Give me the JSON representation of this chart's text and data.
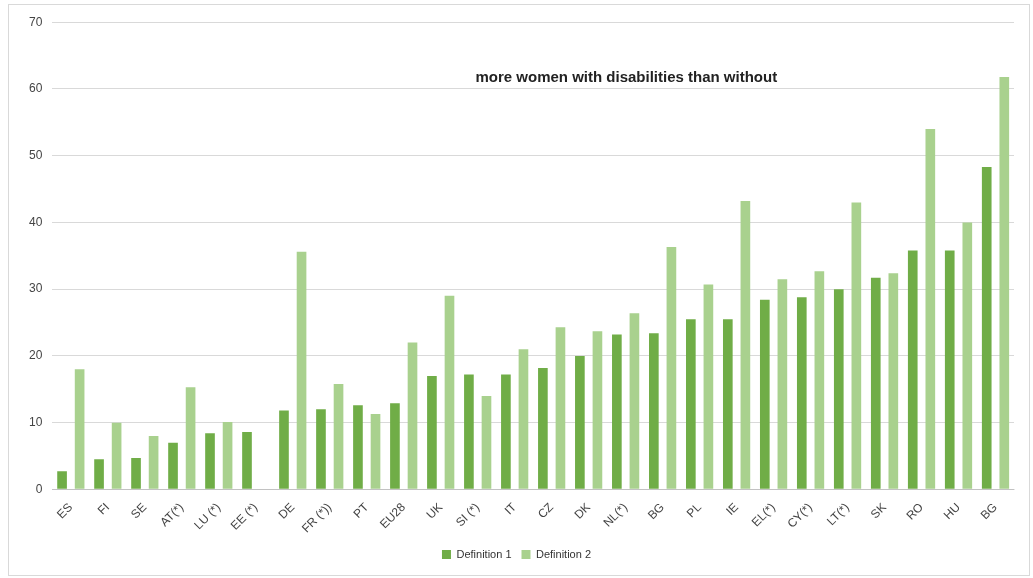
{
  "chart_data": {
    "type": "bar",
    "categories": [
      "ES",
      "FI",
      "SE",
      "AT(*)",
      "LU (*)",
      "EE (*)",
      "DE",
      "FR (*))",
      "PT",
      "EU28",
      "UK",
      "SI (*)",
      "IT",
      "CZ",
      "DK",
      "NL(*)",
      "BG",
      "PL",
      "IE",
      "EL(*)",
      "CY(*)",
      "LT(*)",
      "SK",
      "RO",
      "HU",
      "BG"
    ],
    "series": [
      {
        "name": "Definition 1",
        "color": "#70ad47",
        "values": [
          2.7,
          4.5,
          4.7,
          7,
          8.4,
          8.6,
          11.8,
          12,
          12.6,
          12.9,
          17,
          17.2,
          17.2,
          18.2,
          20,
          23.2,
          23.4,
          25.5,
          25.5,
          28.4,
          28.8,
          30,
          31.7,
          35.8,
          35.8,
          48.3
        ]
      },
      {
        "name": "Definition 2",
        "color": "#a9d18e",
        "values": [
          18,
          10,
          8,
          15.3,
          10.1,
          null,
          35.6,
          15.8,
          11.3,
          22,
          29,
          14,
          21,
          24.3,
          23.7,
          26.4,
          36.3,
          30.7,
          43.2,
          31.5,
          32.7,
          43,
          32.4,
          54,
          40,
          61.8
        ]
      }
    ],
    "ylim": [
      0,
      70
    ],
    "yticks": [
      0,
      10,
      20,
      30,
      40,
      50,
      60,
      70
    ],
    "grid": "y",
    "legend": "bottom",
    "annotations": [
      "more women with disabilities than without"
    ]
  }
}
